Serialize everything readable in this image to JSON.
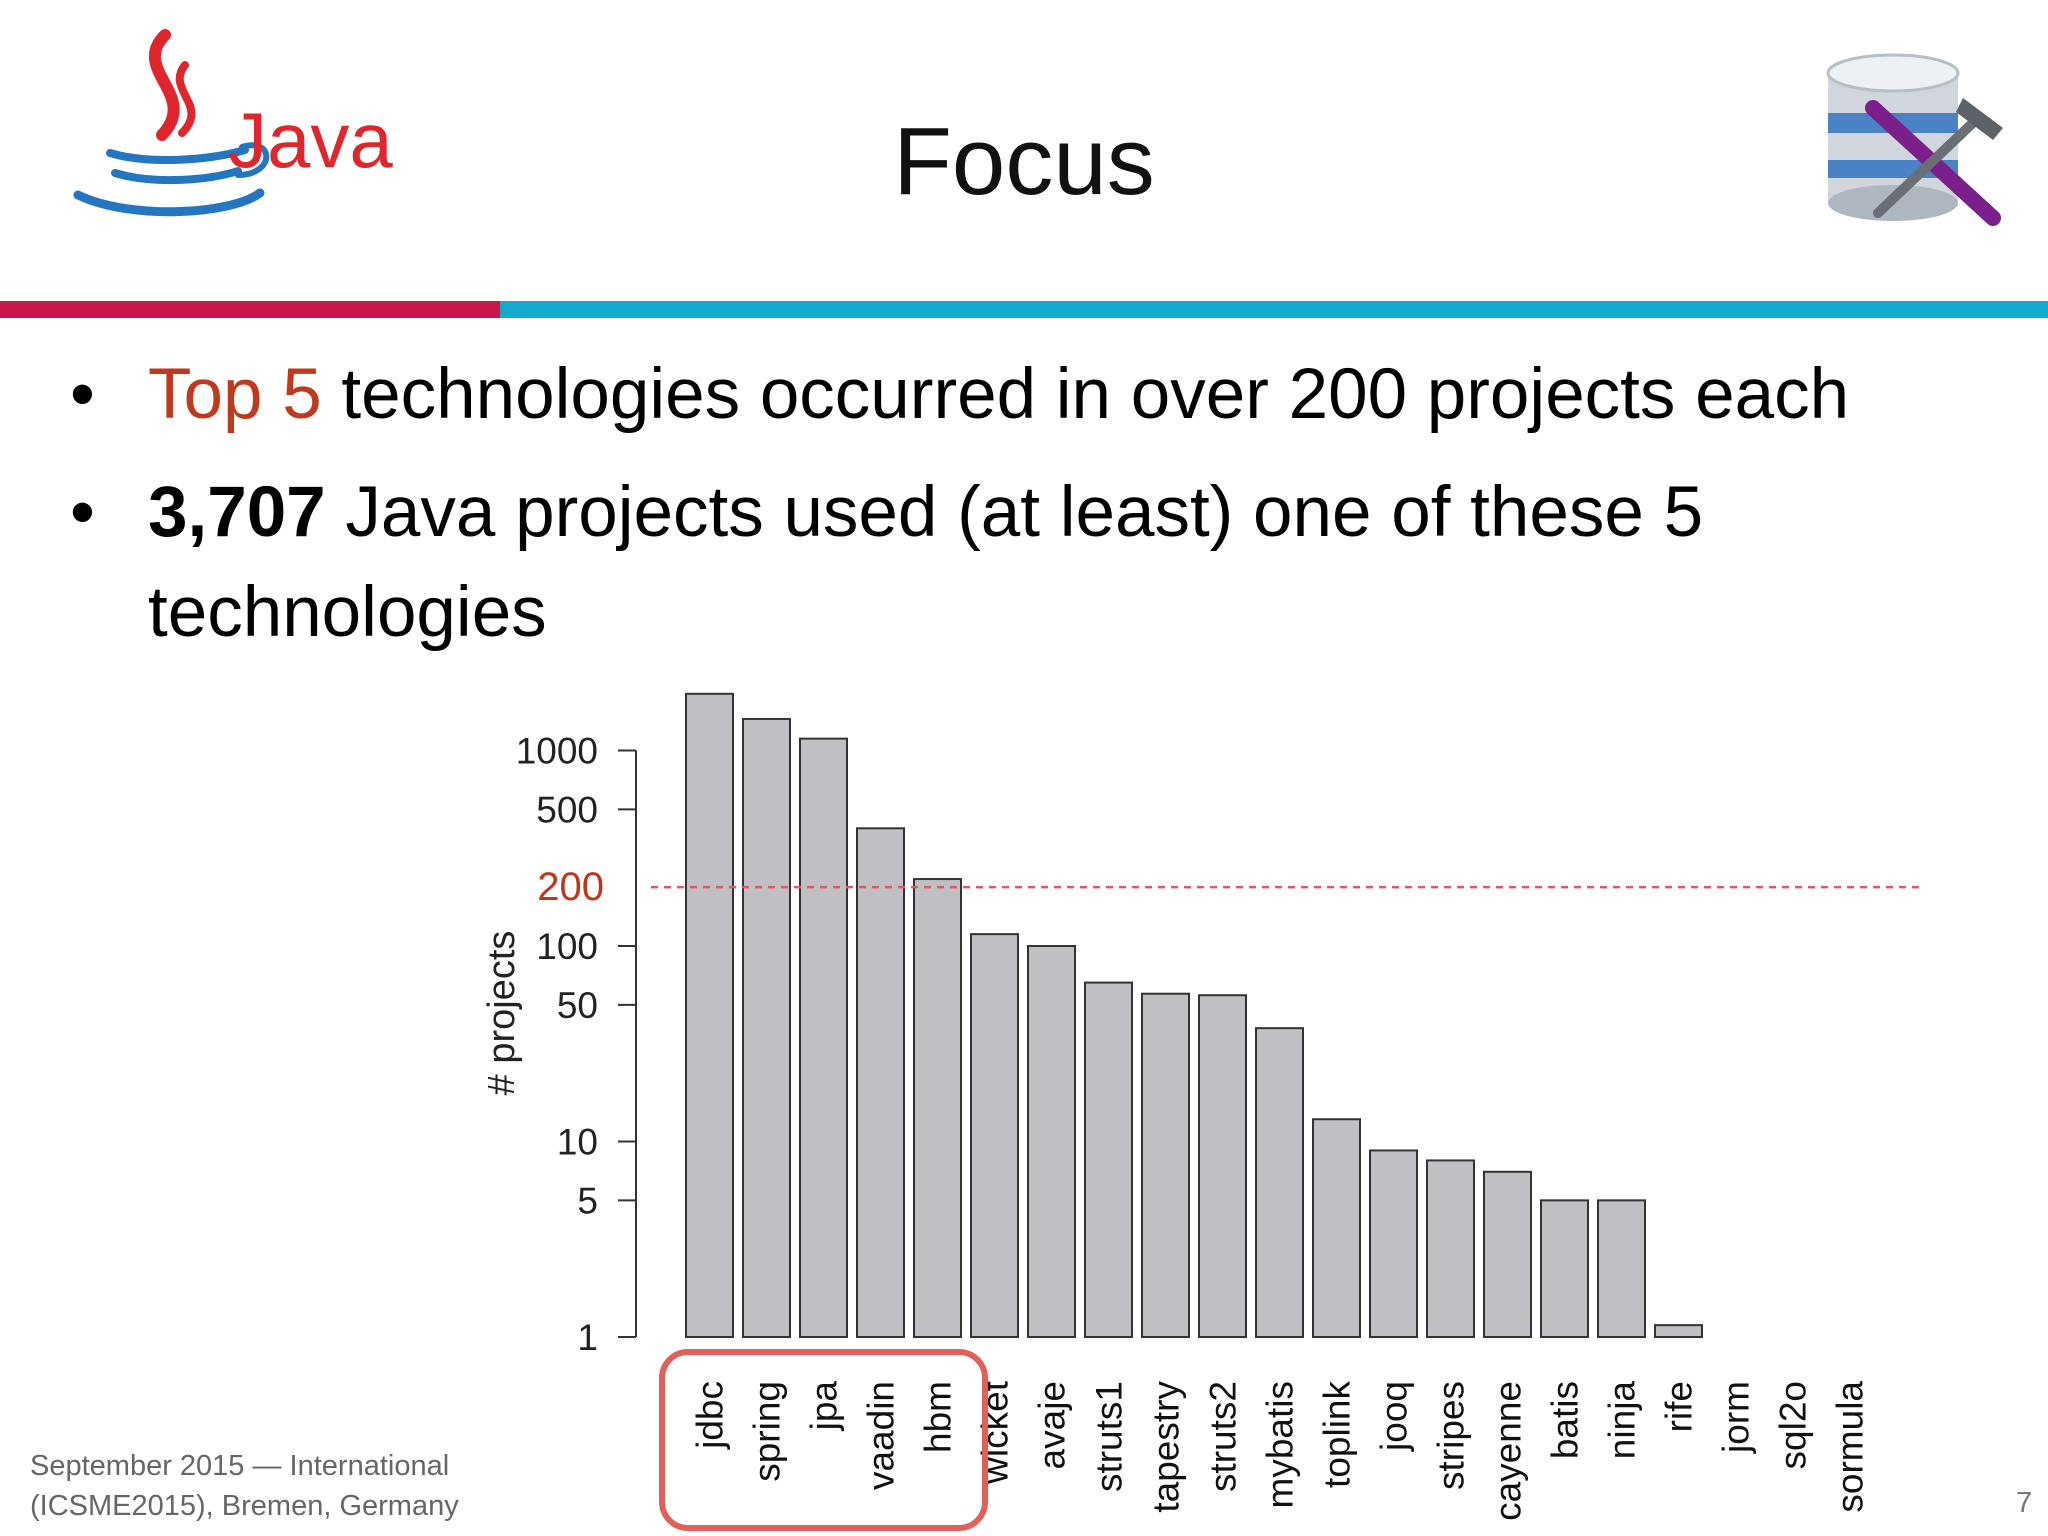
{
  "slide": {
    "title": "Focus",
    "bullet1_highlight": "Top 5",
    "bullet1_rest": " technologies occurred in over 200 projects each",
    "bullet2_bold": "3,707",
    "bullet2_rest": " Java projects used (at least) one of these 5 technologies",
    "footer_line1": "September 2015 — International",
    "footer_line2": "(ICSME2015), Bremen, Germany",
    "page_number": "7",
    "java_logo_text": "Java",
    "accent_red": "#c8174a",
    "accent_teal": "#14aacb",
    "highlight_text_color": "#bf3a1c"
  },
  "chart_data": {
    "type": "bar",
    "ylabel": "# projects",
    "y_scale": "log",
    "ylim": [
      1,
      2000
    ],
    "y_ticks": [
      1,
      5,
      10,
      50,
      100,
      500,
      1000
    ],
    "threshold": {
      "value": 200,
      "label": "200",
      "style": "dashed",
      "color": "#e8536a"
    },
    "categories": [
      "jdbc",
      "spring",
      "jpa",
      "vaadin",
      "hbm",
      "wicket",
      "avaje",
      "struts1",
      "tapestry",
      "struts2",
      "mybatis",
      "toplink",
      "jooq",
      "stripes",
      "cayenne",
      "batis",
      "ninja",
      "rife",
      "jorm",
      "sql2o",
      "sormula"
    ],
    "values": [
      1950,
      1450,
      1150,
      400,
      220,
      115,
      100,
      65,
      57,
      56,
      38,
      13,
      9,
      8,
      7,
      5,
      5,
      1.15,
      1,
      1,
      1
    ],
    "highlighted_categories": [
      "jdbc",
      "spring",
      "jpa",
      "vaadin",
      "hbm"
    ],
    "bar_color": "#c0bfc4",
    "highlight_box_color": "#e0605a"
  }
}
